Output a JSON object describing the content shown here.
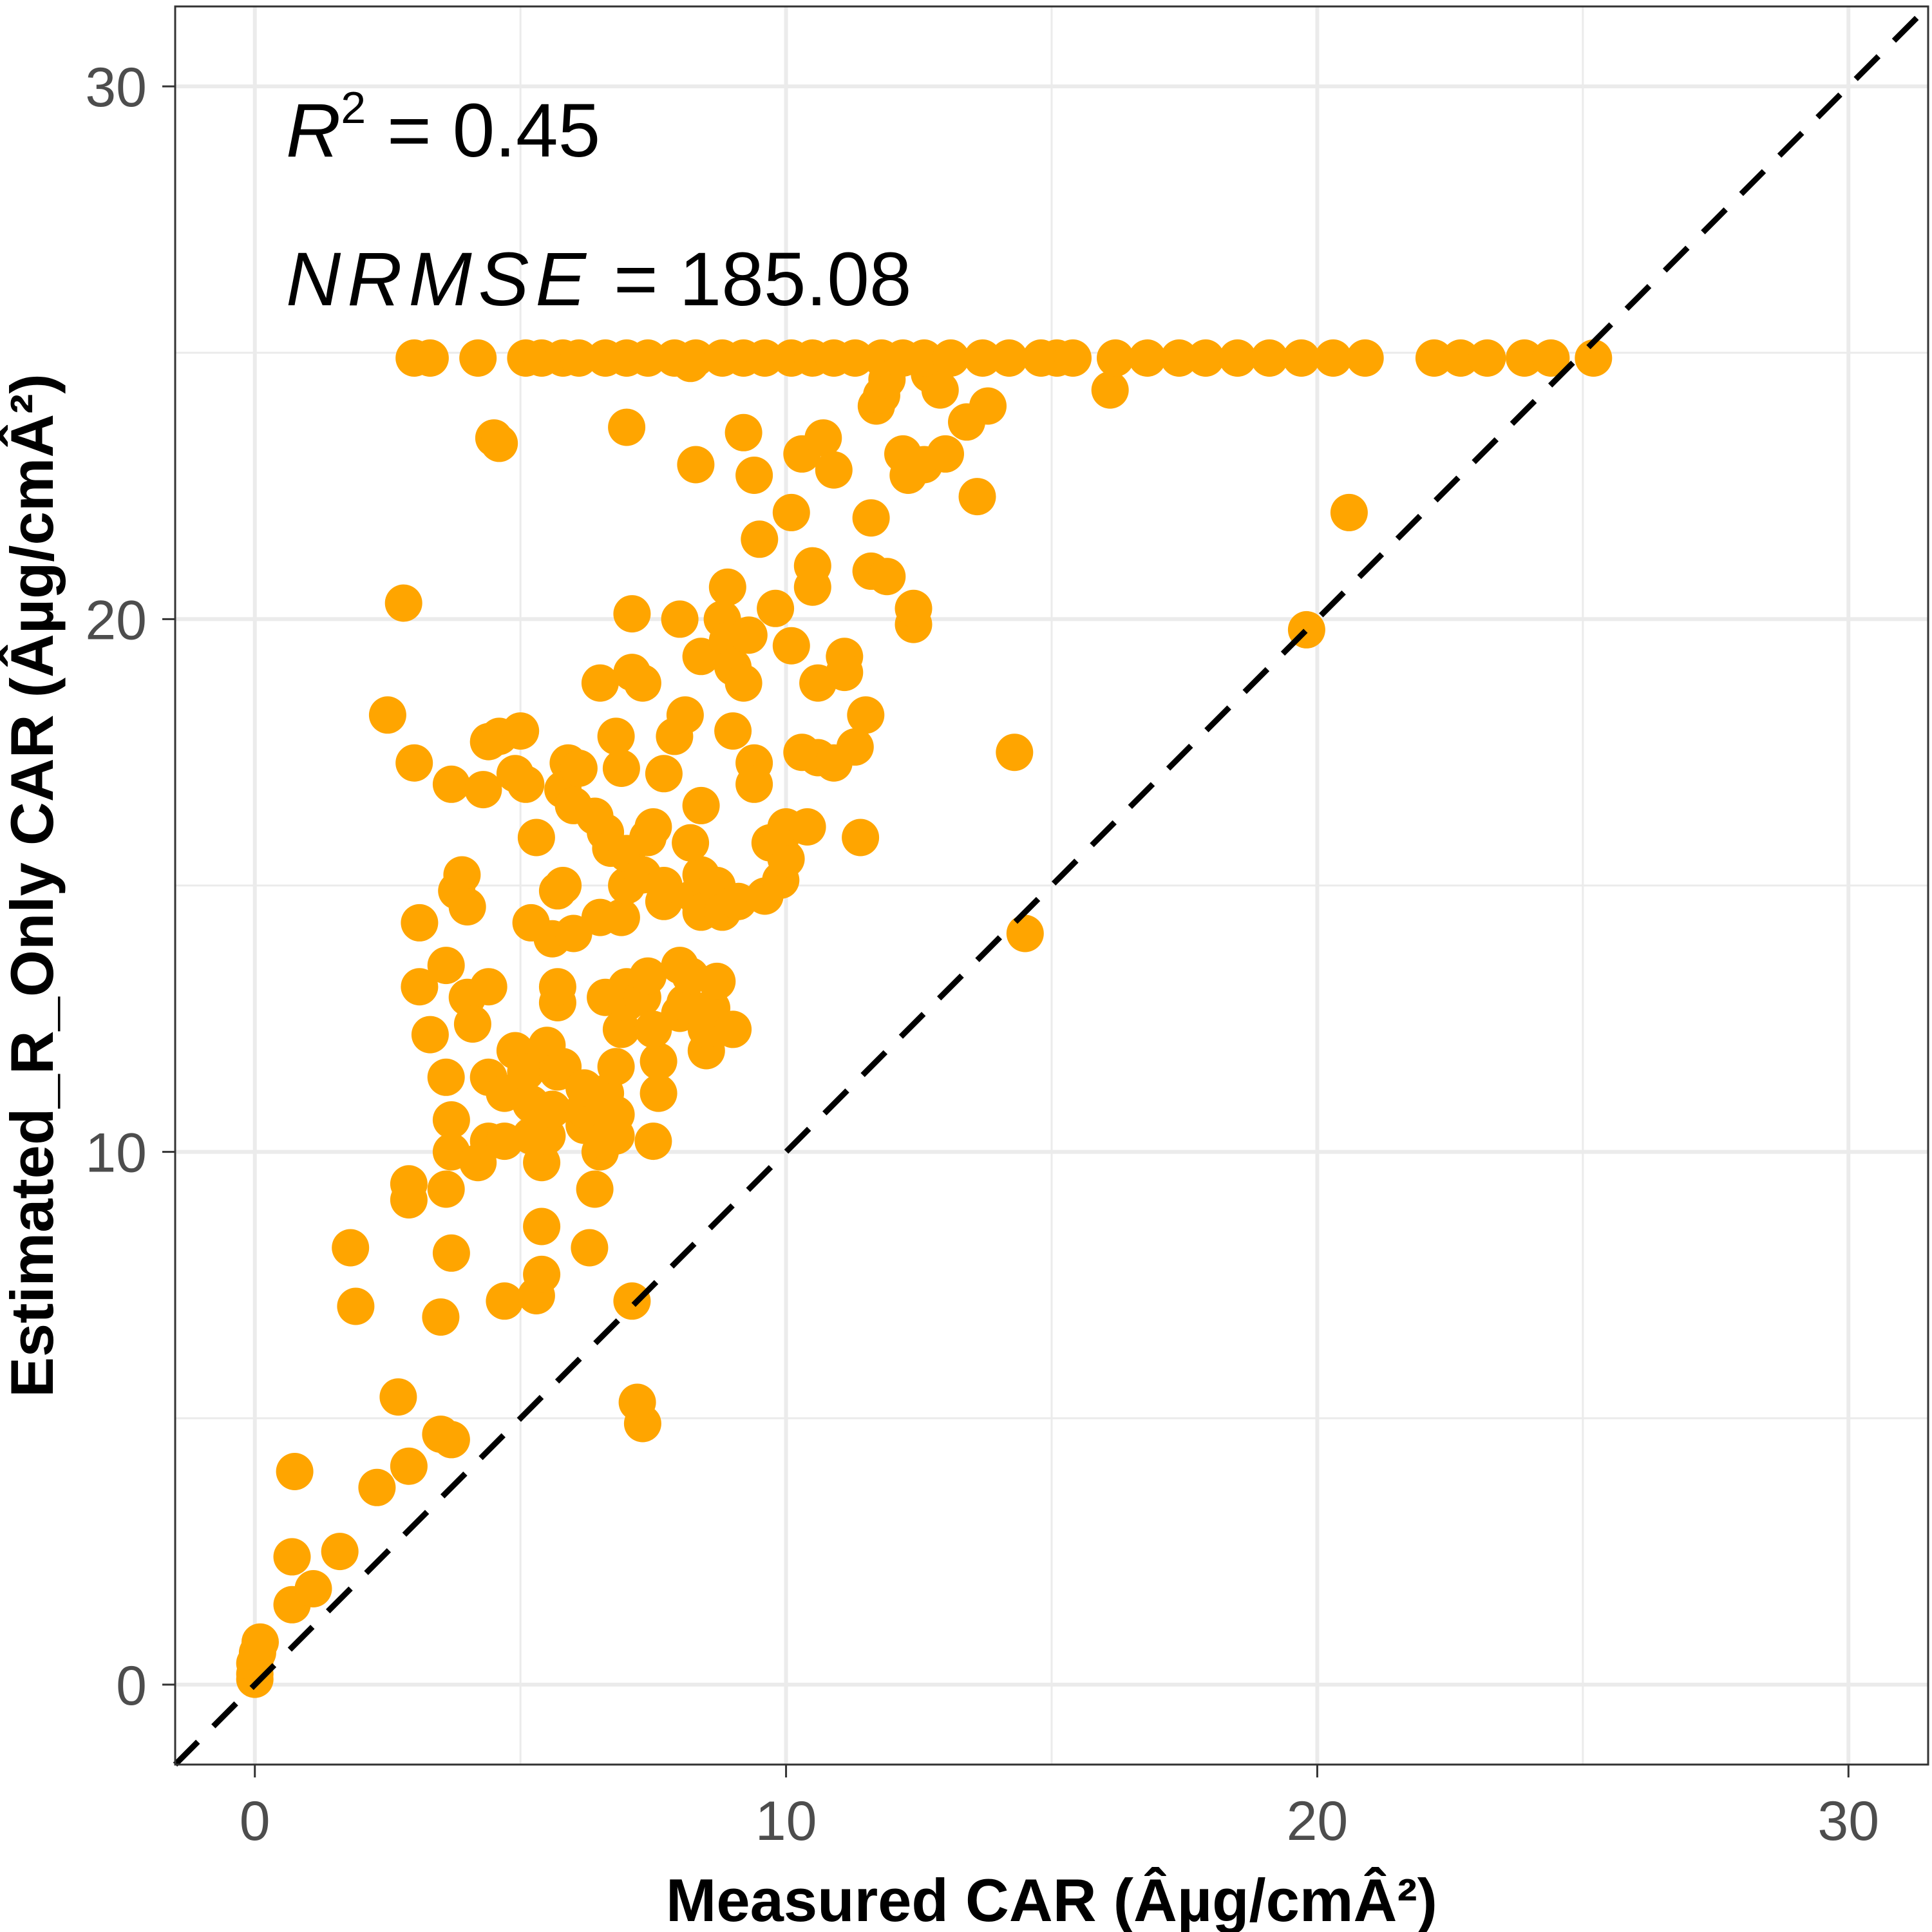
{
  "chart_data": {
    "type": "scatter",
    "xlabel": "Measured CAR (Âµg/cmÂ²)",
    "ylabel": "Estimated_R_Only CAR (Âµg/cmÂ²)",
    "xlim": [
      -1.5,
      31.5
    ],
    "ylim": [
      -1.5,
      31.5
    ],
    "xticks": [
      0,
      10,
      20,
      30
    ],
    "yticks": [
      0,
      10,
      20,
      30
    ],
    "tick_labels": [
      "0",
      "10",
      "20",
      "30"
    ],
    "grid": true,
    "legend": "none",
    "point_color": "#FFA500",
    "reference_line": {
      "style": "dashed",
      "color": "#000000",
      "slope": 1,
      "intercept": 0
    },
    "annotations": {
      "r2_symbol": "R",
      "r2_superscript": "2",
      "r2_text": " = 0.45",
      "nrmse_symbol": "NRMSE",
      "nrmse_text": " = 185.08"
    },
    "points": [
      [
        0.0,
        0.1
      ],
      [
        0.0,
        0.2
      ],
      [
        0.0,
        0.4
      ],
      [
        0.05,
        0.6
      ],
      [
        0.1,
        0.8
      ],
      [
        0.7,
        1.5
      ],
      [
        0.7,
        2.4
      ],
      [
        0.75,
        4.0
      ],
      [
        1.1,
        1.8
      ],
      [
        1.6,
        2.5
      ],
      [
        2.3,
        3.7
      ],
      [
        1.9,
        7.1
      ],
      [
        1.8,
        8.2
      ],
      [
        2.7,
        5.4
      ],
      [
        2.9,
        4.1
      ],
      [
        2.9,
        9.1
      ],
      [
        2.9,
        9.4
      ],
      [
        3.0,
        17.3
      ],
      [
        2.8,
        20.3
      ],
      [
        2.5,
        18.2
      ],
      [
        3.1,
        13.1
      ],
      [
        3.1,
        14.3
      ],
      [
        3.3,
        12.2
      ],
      [
        3.7,
        4.6
      ],
      [
        3.5,
        4.7
      ],
      [
        3.5,
        6.9
      ],
      [
        3.6,
        9.3
      ],
      [
        3.7,
        8.1
      ],
      [
        3.7,
        10.0
      ],
      [
        3.7,
        10.6
      ],
      [
        3.6,
        11.4
      ],
      [
        3.6,
        13.5
      ],
      [
        3.7,
        16.9
      ],
      [
        3.8,
        14.9
      ],
      [
        3.9,
        15.2
      ],
      [
        4.0,
        12.9
      ],
      [
        4.0,
        14.6
      ],
      [
        4.1,
        12.4
      ],
      [
        4.2,
        9.8
      ],
      [
        4.4,
        10.2
      ],
      [
        4.4,
        11.4
      ],
      [
        4.4,
        13.1
      ],
      [
        4.3,
        16.8
      ],
      [
        4.4,
        17.7
      ],
      [
        4.5,
        23.4
      ],
      [
        4.6,
        23.3
      ],
      [
        4.6,
        17.8
      ],
      [
        4.7,
        11.1
      ],
      [
        4.7,
        10.2
      ],
      [
        4.7,
        7.2
      ],
      [
        4.9,
        11.9
      ],
      [
        4.9,
        17.1
      ],
      [
        5.0,
        17.9
      ],
      [
        5.1,
        11.5
      ],
      [
        5.2,
        10.3
      ],
      [
        5.2,
        10.9
      ],
      [
        5.1,
        16.9
      ],
      [
        5.3,
        15.9
      ],
      [
        5.2,
        14.3
      ],
      [
        5.5,
        12.0
      ],
      [
        5.4,
        9.8
      ],
      [
        5.4,
        8.6
      ],
      [
        5.3,
        7.3
      ],
      [
        5.4,
        7.7
      ],
      [
        5.5,
        10.3
      ],
      [
        5.6,
        10.8
      ],
      [
        5.7,
        11.5
      ],
      [
        5.7,
        12.8
      ],
      [
        5.8,
        11.6
      ],
      [
        5.6,
        14.0
      ],
      [
        5.7,
        14.9
      ],
      [
        5.8,
        15.0
      ],
      [
        5.8,
        16.8
      ],
      [
        5.7,
        13.1
      ],
      [
        5.9,
        17.3
      ],
      [
        6.0,
        16.5
      ],
      [
        6.1,
        17.2
      ],
      [
        6.0,
        14.1
      ],
      [
        6.2,
        10.5
      ],
      [
        6.2,
        10.8
      ],
      [
        6.2,
        11.2
      ],
      [
        6.3,
        8.2
      ],
      [
        6.4,
        9.3
      ],
      [
        6.5,
        10.0
      ],
      [
        6.6,
        10.2
      ],
      [
        6.6,
        11.1
      ],
      [
        6.6,
        12.9
      ],
      [
        6.5,
        14.4
      ],
      [
        6.7,
        15.7
      ],
      [
        6.6,
        16.0
      ],
      [
        6.4,
        16.3
      ],
      [
        6.5,
        18.8
      ],
      [
        6.8,
        10.3
      ],
      [
        6.8,
        10.7
      ],
      [
        6.8,
        11.6
      ],
      [
        6.9,
        12.3
      ],
      [
        7.0,
        12.8
      ],
      [
        7.0,
        13.1
      ],
      [
        6.9,
        14.4
      ],
      [
        7.0,
        15.0
      ],
      [
        7.0,
        15.6
      ],
      [
        6.9,
        17.2
      ],
      [
        6.8,
        17.8
      ],
      [
        7.1,
        7.2
      ],
      [
        7.1,
        19.0
      ],
      [
        7.1,
        20.1
      ],
      [
        7.0,
        23.6
      ],
      [
        7.2,
        5.3
      ],
      [
        7.3,
        4.9
      ],
      [
        7.3,
        12.9
      ],
      [
        7.4,
        13.3
      ],
      [
        7.3,
        15.2
      ],
      [
        7.4,
        15.9
      ],
      [
        7.5,
        16.1
      ],
      [
        7.3,
        18.8
      ],
      [
        7.5,
        10.2
      ],
      [
        7.6,
        11.1
      ],
      [
        7.6,
        11.7
      ],
      [
        7.5,
        12.3
      ],
      [
        7.7,
        14.7
      ],
      [
        7.7,
        15.0
      ],
      [
        7.7,
        17.1
      ],
      [
        7.9,
        17.8
      ],
      [
        8.0,
        12.6
      ],
      [
        8.1,
        12.8
      ],
      [
        8.0,
        13.5
      ],
      [
        8.2,
        13.3
      ],
      [
        8.3,
        14.8
      ],
      [
        8.4,
        15.2
      ],
      [
        8.4,
        14.5
      ],
      [
        8.2,
        15.8
      ],
      [
        8.1,
        18.2
      ],
      [
        8.0,
        20.0
      ],
      [
        8.2,
        24.8
      ],
      [
        8.3,
        22.9
      ],
      [
        8.4,
        19.3
      ],
      [
        8.4,
        16.5
      ],
      [
        8.5,
        11.9
      ],
      [
        8.5,
        12.3
      ],
      [
        8.6,
        12.7
      ],
      [
        8.7,
        13.2
      ],
      [
        8.7,
        15.0
      ],
      [
        8.8,
        14.5
      ],
      [
        8.8,
        20.0
      ],
      [
        8.9,
        20.6
      ],
      [
        8.9,
        19.6
      ],
      [
        9.0,
        19.1
      ],
      [
        9.0,
        12.3
      ],
      [
        9.1,
        14.7
      ],
      [
        9.0,
        17.9
      ],
      [
        9.2,
        18.8
      ],
      [
        9.3,
        19.7
      ],
      [
        9.2,
        23.5
      ],
      [
        9.4,
        22.7
      ],
      [
        9.4,
        17.3
      ],
      [
        9.4,
        16.9
      ],
      [
        9.5,
        21.5
      ],
      [
        9.6,
        14.8
      ],
      [
        9.8,
        20.2
      ],
      [
        9.7,
        15.8
      ],
      [
        9.9,
        15.1
      ],
      [
        10.0,
        15.5
      ],
      [
        9.9,
        15.9
      ],
      [
        10.0,
        16.1
      ],
      [
        10.1,
        19.5
      ],
      [
        10.1,
        22.0
      ],
      [
        10.3,
        23.1
      ],
      [
        10.3,
        17.5
      ],
      [
        10.4,
        16.1
      ],
      [
        10.5,
        21.0
      ],
      [
        10.5,
        20.6
      ],
      [
        10.6,
        18.8
      ],
      [
        10.6,
        17.4
      ],
      [
        10.7,
        23.4
      ],
      [
        10.9,
        17.3
      ],
      [
        10.9,
        22.8
      ],
      [
        11.1,
        19.3
      ],
      [
        11.1,
        19.0
      ],
      [
        11.3,
        17.6
      ],
      [
        11.4,
        15.9
      ],
      [
        11.5,
        18.2
      ],
      [
        11.6,
        21.9
      ],
      [
        11.6,
        20.9
      ],
      [
        11.7,
        24.0
      ],
      [
        11.8,
        24.2
      ],
      [
        11.9,
        24.5
      ],
      [
        11.9,
        20.8
      ],
      [
        12.2,
        23.1
      ],
      [
        12.3,
        22.7
      ],
      [
        12.4,
        19.9
      ],
      [
        12.4,
        20.2
      ],
      [
        12.6,
        22.9
      ],
      [
        12.7,
        24.6
      ],
      [
        12.9,
        24.3
      ],
      [
        13.0,
        23.1
      ],
      [
        13.4,
        23.7
      ],
      [
        13.6,
        22.3
      ],
      [
        13.8,
        24.0
      ],
      [
        14.3,
        17.5
      ],
      [
        14.5,
        14.1
      ],
      [
        15.1,
        24.9
      ],
      [
        16.1,
        24.3
      ],
      [
        19.8,
        19.8
      ],
      [
        20.6,
        22.0
      ],
      [
        3.0,
        24.9
      ],
      [
        3.3,
        24.9
      ],
      [
        4.2,
        24.9
      ],
      [
        5.1,
        24.9
      ],
      [
        5.4,
        24.9
      ],
      [
        5.8,
        24.9
      ],
      [
        6.1,
        24.9
      ],
      [
        6.6,
        24.9
      ],
      [
        7.0,
        24.9
      ],
      [
        7.4,
        24.9
      ],
      [
        7.9,
        24.9
      ],
      [
        8.3,
        24.9
      ],
      [
        8.8,
        24.9
      ],
      [
        9.2,
        24.9
      ],
      [
        9.6,
        24.9
      ],
      [
        10.1,
        24.9
      ],
      [
        10.5,
        24.9
      ],
      [
        10.9,
        24.9
      ],
      [
        11.3,
        24.9
      ],
      [
        11.8,
        24.9
      ],
      [
        12.2,
        24.9
      ],
      [
        12.6,
        24.9
      ],
      [
        13.1,
        24.9
      ],
      [
        13.7,
        24.9
      ],
      [
        14.2,
        24.9
      ],
      [
        14.8,
        24.9
      ],
      [
        15.4,
        24.9
      ],
      [
        16.2,
        24.9
      ],
      [
        16.8,
        24.9
      ],
      [
        17.4,
        24.9
      ],
      [
        17.9,
        24.9
      ],
      [
        18.5,
        24.9
      ],
      [
        19.1,
        24.9
      ],
      [
        19.7,
        24.9
      ],
      [
        20.3,
        24.9
      ],
      [
        20.9,
        24.9
      ],
      [
        22.2,
        24.9
      ],
      [
        22.7,
        24.9
      ],
      [
        23.2,
        24.9
      ],
      [
        23.9,
        24.9
      ],
      [
        24.4,
        24.9
      ],
      [
        25.2,
        24.9
      ]
    ]
  }
}
